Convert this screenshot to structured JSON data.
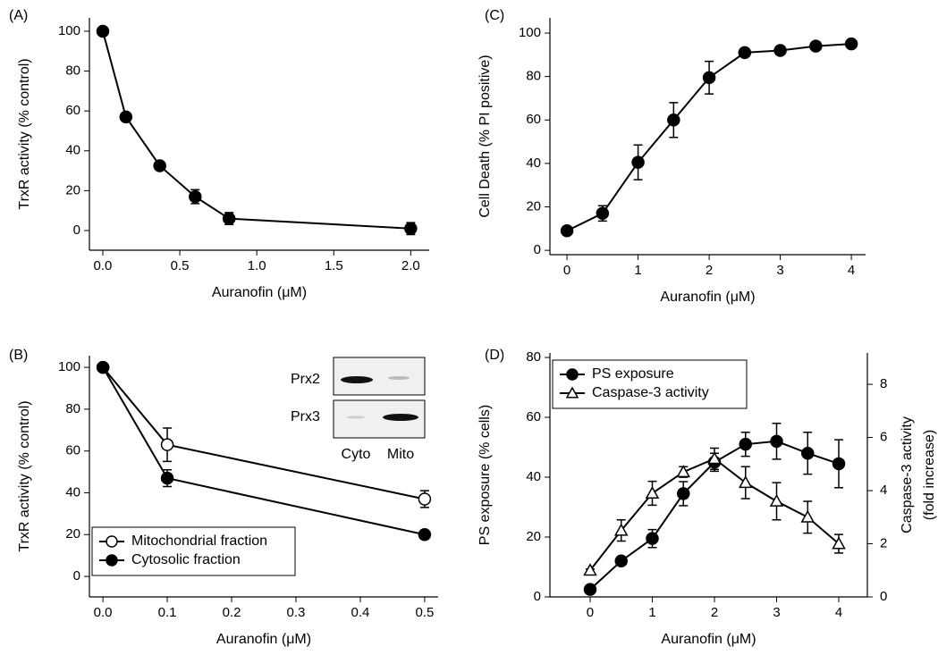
{
  "chart_data": [
    {
      "type": "line",
      "panel_label": "(A)",
      "xlabel": "Auranofin (μM)",
      "ylabel": "TrxR activity (% control)",
      "xlim": [
        -0.087,
        2.12
      ],
      "ylim": [
        -9.87,
        106.7
      ],
      "xticks": [
        {
          "value": 0,
          "label": "0.0"
        },
        0.5,
        {
          "value": 1,
          "label": "1.0"
        },
        1.5,
        {
          "value": 2,
          "label": "2.0"
        }
      ],
      "yticks": [
        0,
        20,
        40,
        60,
        80,
        100
      ],
      "series": [
        {
          "color": "#000000",
          "marker": "circle",
          "filled": true,
          "x": [
            0,
            0.15,
            0.37,
            0.6,
            0.82,
            2.0
          ],
          "values": [
            100,
            57,
            32.5,
            17,
            6,
            1
          ],
          "errors": [
            0.5,
            1,
            1,
            3.5,
            3,
            3
          ]
        }
      ]
    },
    {
      "type": "line",
      "panel_label": "(B)",
      "xlabel": "Auranofin (μM)",
      "ylabel": "TrxR activity (% control)",
      "xlim": [
        -0.021,
        0.521
      ],
      "ylim": [
        -9.8,
        105.6
      ],
      "xticks": [
        {
          "value": 0,
          "label": "0.0"
        },
        0.1,
        0.2,
        0.3,
        0.4,
        0.5
      ],
      "yticks": [
        0,
        20,
        40,
        60,
        80,
        100
      ],
      "legend": "lower left",
      "series": [
        {
          "name": "Mitochondrial fraction",
          "color": "#000000",
          "marker": "circle",
          "filled": false,
          "x": [
            0,
            0.1,
            0.5
          ],
          "values": [
            100,
            63,
            37
          ],
          "errors": [
            0.5,
            8,
            4
          ]
        },
        {
          "name": "Cytosolic fraction",
          "color": "#000000",
          "marker": "circle",
          "filled": true,
          "x": [
            0,
            0.1,
            0.5
          ],
          "values": [
            100,
            47,
            20
          ],
          "errors": [
            0.5,
            4,
            2
          ]
        }
      ],
      "inset": {
        "row_labels": [
          "Prx2",
          "Prx3"
        ],
        "column_labels": [
          "Cyto",
          "Mito"
        ]
      }
    },
    {
      "type": "line",
      "panel_label": "(C)",
      "xlabel": "Auranofin (μM)",
      "ylabel": "Cell Death (% PI positive)",
      "xlim": [
        -0.24,
        4.2
      ],
      "ylim": [
        -2,
        107
      ],
      "xticks": [
        0,
        1,
        2,
        3,
        4
      ],
      "yticks": [
        0,
        20,
        40,
        60,
        80,
        100
      ],
      "series": [
        {
          "color": "#000000",
          "marker": "circle",
          "filled": true,
          "x": [
            0,
            0.5,
            1,
            1.5,
            2,
            2.5,
            3,
            3.5,
            4
          ],
          "values": [
            9,
            17,
            40.5,
            60,
            79.5,
            91,
            92,
            94,
            95
          ],
          "errors": [
            1,
            3.5,
            8,
            8,
            7.5,
            1.5,
            1,
            1,
            1
          ]
        }
      ]
    },
    {
      "type": "line",
      "panel_label": "(D)",
      "xlabel": "Auranofin (μM)",
      "ylabel": "PS exposure (% cells)",
      "y2label": [
        "Caspase-3 activity",
        "(fold increase)"
      ],
      "xlim": [
        -0.647,
        4.46
      ],
      "ylim": [
        0,
        81.5
      ],
      "y2lim": [
        0,
        9.18
      ],
      "xticks": [
        0,
        1,
        2,
        3,
        4
      ],
      "yticks": [
        0,
        20,
        40,
        60,
        80
      ],
      "y2ticks": [
        0,
        2,
        4,
        6,
        8
      ],
      "legend": "upper left",
      "series": [
        {
          "name": "PS exposure",
          "color": "#000000",
          "marker": "circle",
          "filled": true,
          "x": [
            0,
            0.5,
            1,
            1.5,
            2,
            2.5,
            3,
            3.5,
            4
          ],
          "values": [
            2.5,
            12,
            19.5,
            34.5,
            45,
            51,
            52,
            48,
            44.5
          ],
          "errors": [
            0.5,
            1,
            3,
            4,
            3,
            4,
            6,
            7,
            8
          ]
        },
        {
          "name": "Caspase-3 activity",
          "axis": "y2",
          "color": "#000000",
          "marker": "triangle",
          "filled": false,
          "x": [
            0,
            0.5,
            1,
            1.5,
            2,
            2.5,
            3,
            3.5,
            4
          ],
          "values": [
            1.0,
            2.5,
            3.9,
            4.7,
            5.2,
            4.3,
            3.6,
            3.0,
            2.0
          ],
          "errors": [
            0.05,
            0.4,
            0.45,
            0.2,
            0.4,
            0.6,
            0.7,
            0.6,
            0.35
          ]
        }
      ]
    }
  ]
}
